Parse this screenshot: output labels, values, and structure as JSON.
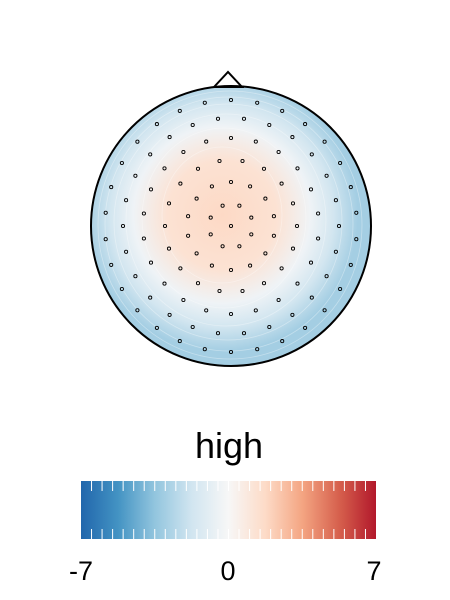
{
  "chart_data": {
    "type": "heatmap",
    "subtype": "scalp-topography",
    "title": "high",
    "colorbar": {
      "min": -7,
      "max": 7,
      "tick_labels": [
        "-7",
        "0",
        "7"
      ],
      "colormap": [
        "#2166ac",
        "#4393c3",
        "#92c5de",
        "#d1e5f0",
        "#f7f7f7",
        "#fddbc7",
        "#f4a582",
        "#d6604d",
        "#b2182b"
      ]
    },
    "value_at_center": 1.8,
    "value_at_rim": -3.0,
    "electrode_count": 128
  }
}
